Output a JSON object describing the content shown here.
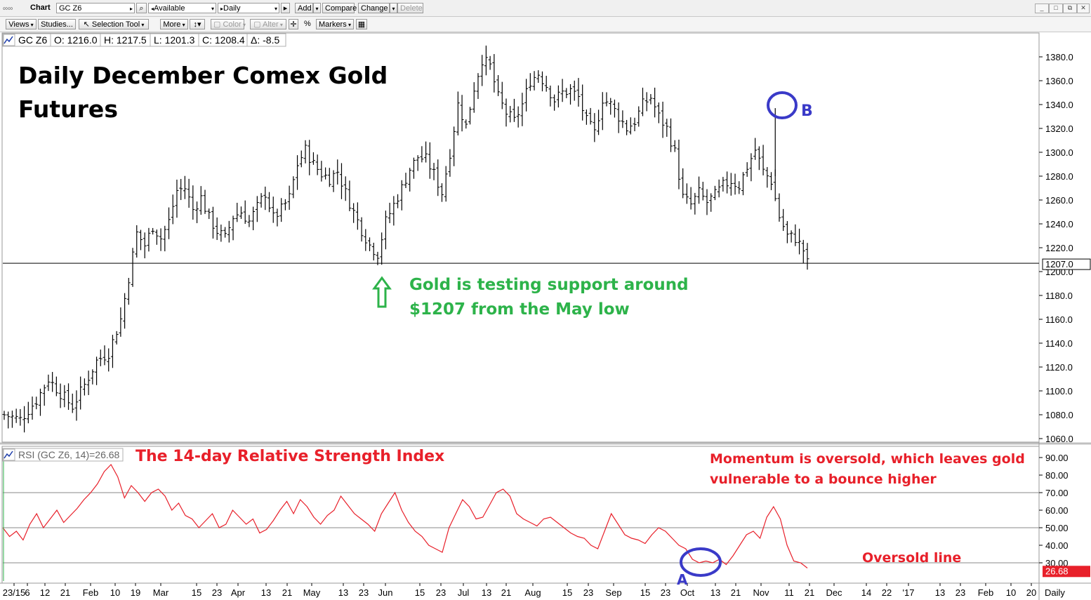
{
  "toolbar": {
    "app_label": "Chart",
    "symbol": "GC Z6",
    "layout": "Available",
    "period": "Daily",
    "add": "Add",
    "compare": "Compare",
    "change": "Change",
    "delete": "Delete",
    "views": "Views",
    "studies": "Studies...",
    "selection_tool": "Selection Tool",
    "more": "More",
    "color": "Color",
    "alter": "Alter",
    "percent": "%",
    "markers": "Markers"
  },
  "ohlc": {
    "symbol": "GC Z6",
    "open": "O: 1216.0",
    "high": "H: 1217.5",
    "low": "L: 1201.3",
    "close": "C: 1208.4",
    "change": "Δ: -8.5"
  },
  "rsi_label": "RSI (GC Z6, 14)=26.68",
  "annotations": {
    "title_line1": "Daily December Comex Gold",
    "title_line2": "Futures",
    "support_line1": "Gold is testing support around",
    "support_line2": "$1207 from the May low",
    "point_b": "B",
    "point_a": "A",
    "rsi_title": "The 14-day Relative Strength Index",
    "momentum_line1": "Momentum is oversold, which leaves gold",
    "momentum_line2": "vulnerable to a bounce higher",
    "oversold": "Oversold line"
  },
  "colors": {
    "green": "#2db34a",
    "red": "#e8202a",
    "blue": "#3a3ac8",
    "bars": "#000000",
    "rsi_line": "#e8202a"
  },
  "chart_data": [
    {
      "type": "ohlc",
      "title": "Daily December Comex Gold Futures",
      "ylim": [
        1060,
        1390
      ],
      "yticks": [
        "1060.0",
        "1080.0",
        "1100.0",
        "1120.0",
        "1140.0",
        "1160.0",
        "1180.0",
        "1200.0",
        "1220.0",
        "1240.0",
        "1260.0",
        "1280.0",
        "1300.0",
        "1320.0",
        "1340.0",
        "1360.0",
        "1380.0"
      ],
      "last_price_label": "1207.0",
      "support_level": 1207,
      "close_path": [
        [
          0,
          1080
        ],
        [
          4,
          1076
        ],
        [
          8,
          1092
        ],
        [
          11,
          1110
        ],
        [
          14,
          1098
        ],
        [
          17,
          1087
        ],
        [
          20,
          1105
        ],
        [
          23,
          1125
        ],
        [
          26,
          1132
        ],
        [
          29,
          1160
        ],
        [
          31,
          1195
        ],
        [
          33,
          1232
        ],
        [
          35,
          1222
        ],
        [
          37,
          1238
        ],
        [
          39,
          1228
        ],
        [
          41,
          1242
        ],
        [
          43,
          1268
        ],
        [
          45,
          1270
        ],
        [
          47,
          1252
        ],
        [
          49,
          1262
        ],
        [
          51,
          1245
        ],
        [
          53,
          1234
        ],
        [
          55,
          1228
        ],
        [
          57,
          1246
        ],
        [
          59,
          1250
        ],
        [
          61,
          1242
        ],
        [
          63,
          1254
        ],
        [
          65,
          1266
        ],
        [
          67,
          1245
        ],
        [
          69,
          1252
        ],
        [
          71,
          1262
        ],
        [
          73,
          1290
        ],
        [
          75,
          1302
        ],
        [
          77,
          1290
        ],
        [
          79,
          1282
        ],
        [
          81,
          1278
        ],
        [
          83,
          1284
        ],
        [
          85,
          1266
        ],
        [
          87,
          1250
        ],
        [
          89,
          1235
        ],
        [
          91,
          1222
        ],
        [
          93,
          1215
        ],
        [
          95,
          1242
        ],
        [
          97,
          1256
        ],
        [
          99,
          1270
        ],
        [
          101,
          1286
        ],
        [
          103,
          1296
        ],
        [
          105,
          1294
        ],
        [
          107,
          1282
        ],
        [
          109,
          1266
        ],
        [
          111,
          1300
        ],
        [
          113,
          1340
        ],
        [
          115,
          1322
        ],
        [
          117,
          1354
        ],
        [
          119,
          1378
        ],
        [
          121,
          1372
        ],
        [
          123,
          1346
        ],
        [
          125,
          1333
        ],
        [
          127,
          1326
        ],
        [
          129,
          1340
        ],
        [
          131,
          1360
        ],
        [
          133,
          1366
        ],
        [
          135,
          1356
        ],
        [
          137,
          1344
        ],
        [
          139,
          1350
        ],
        [
          141,
          1352
        ],
        [
          143,
          1346
        ],
        [
          145,
          1326
        ],
        [
          147,
          1316
        ],
        [
          149,
          1345
        ],
        [
          151,
          1340
        ],
        [
          153,
          1330
        ],
        [
          155,
          1320
        ],
        [
          157,
          1326
        ],
        [
          159,
          1340
        ],
        [
          161,
          1346
        ],
        [
          163,
          1330
        ],
        [
          165,
          1320
        ],
        [
          167,
          1300
        ],
        [
          169,
          1262
        ],
        [
          171,
          1256
        ],
        [
          173,
          1266
        ],
        [
          175,
          1258
        ],
        [
          177,
          1264
        ],
        [
          179,
          1272
        ],
        [
          181,
          1276
        ],
        [
          183,
          1272
        ],
        [
          185,
          1288
        ],
        [
          187,
          1302
        ],
        [
          189,
          1284
        ],
        [
          191,
          1276
        ],
        [
          193,
          1246
        ],
        [
          195,
          1230
        ],
        [
          197,
          1228
        ],
        [
          199,
          1218
        ],
        [
          200,
          1207
        ]
      ],
      "annotation_points": [
        {
          "label": "B",
          "date": "Nov 9",
          "value": 1337
        },
        {
          "label": "May low",
          "date": "May 31",
          "value": 1207
        }
      ]
    },
    {
      "type": "line",
      "series": [
        {
          "name": "RSI (GC Z6, 14)",
          "last_value": "26.68"
        }
      ],
      "ylim": [
        15,
        97
      ],
      "yticks": [
        "30.00",
        "40.00",
        "50.00",
        "60.00",
        "70.00",
        "80.00",
        "90.00"
      ],
      "gridlines": [
        30,
        50,
        70
      ],
      "last_value_label": "26.68",
      "values": [
        50,
        45,
        48,
        43,
        52,
        58,
        50,
        55,
        60,
        53,
        57,
        61,
        66,
        70,
        75,
        82,
        86,
        79,
        67,
        74,
        70,
        65,
        70,
        72,
        68,
        60,
        64,
        57,
        55,
        50,
        54,
        58,
        50,
        52,
        60,
        56,
        52,
        55,
        47,
        49,
        54,
        60,
        65,
        58,
        66,
        62,
        56,
        52,
        57,
        60,
        68,
        63,
        58,
        55,
        52,
        48,
        58,
        64,
        70,
        60,
        53,
        48,
        45,
        40,
        38,
        36,
        50,
        58,
        66,
        62,
        55,
        56,
        63,
        70,
        72,
        68,
        58,
        55,
        53,
        51,
        55,
        56,
        53,
        50,
        47,
        45,
        44,
        40,
        38,
        48,
        58,
        52,
        46,
        44,
        43,
        41,
        46,
        50,
        48,
        44,
        40,
        38,
        32,
        30,
        31,
        30,
        32,
        29,
        34,
        40,
        46,
        48,
        44,
        56,
        62,
        55,
        40,
        31,
        30,
        27
      ]
    }
  ],
  "xaxis": {
    "labels": [
      "23/15",
      "6",
      "12",
      "21",
      "Feb",
      "10",
      "19",
      "Mar",
      "15",
      "23",
      "Apr",
      "13",
      "21",
      "May",
      "13",
      "23",
      "Jun",
      "15",
      "23",
      "Jul",
      "13",
      "21",
      "Aug",
      "15",
      "23",
      "Sep",
      "15",
      "23",
      "Oct",
      "13",
      "21",
      "Nov",
      "11",
      "21",
      "Dec",
      "14",
      "22",
      "'17",
      "13",
      "23",
      "Feb",
      "10",
      "20"
    ],
    "period_label": "Daily"
  }
}
